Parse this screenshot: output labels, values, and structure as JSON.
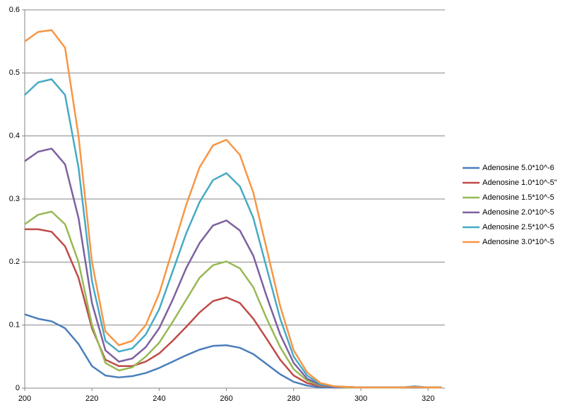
{
  "chart_data": {
    "type": "line",
    "x": [
      200,
      204,
      208,
      212,
      216,
      220,
      224,
      228,
      232,
      236,
      240,
      244,
      248,
      252,
      256,
      260,
      264,
      268,
      272,
      276,
      280,
      284,
      288,
      292,
      296,
      300,
      304,
      308,
      312,
      316,
      320,
      324
    ],
    "series": [
      {
        "name": "Adenosine 5.0*10^-6",
        "color": "#4a7ebb",
        "values": [
          0.117,
          0.11,
          0.106,
          0.095,
          0.07,
          0.035,
          0.02,
          0.017,
          0.019,
          0.024,
          0.032,
          0.042,
          0.052,
          0.061,
          0.067,
          0.068,
          0.064,
          0.054,
          0.038,
          0.022,
          0.01,
          0.004,
          0.001,
          0.001,
          0.001,
          0.001,
          0.001,
          0.001,
          0.001,
          0.002,
          0.001,
          0.001
        ]
      },
      {
        "name": "Adenosine 1.0*10^-5\"",
        "color": "#be4b48",
        "values": [
          0.252,
          0.252,
          0.248,
          0.225,
          0.175,
          0.095,
          0.045,
          0.035,
          0.035,
          0.042,
          0.055,
          0.075,
          0.097,
          0.12,
          0.138,
          0.144,
          0.135,
          0.11,
          0.078,
          0.045,
          0.02,
          0.008,
          0.003,
          0.002,
          0.001,
          0.001,
          0.001,
          0.001,
          0.001,
          0.002,
          0.001,
          0.001
        ]
      },
      {
        "name": "Adenosine 1.5*10^-5",
        "color": "#98b954",
        "values": [
          0.26,
          0.275,
          0.28,
          0.26,
          0.2,
          0.1,
          0.04,
          0.028,
          0.033,
          0.05,
          0.072,
          0.105,
          0.14,
          0.175,
          0.195,
          0.201,
          0.19,
          0.16,
          0.11,
          0.065,
          0.03,
          0.012,
          0.004,
          0.002,
          0.001,
          0.001,
          0.001,
          0.001,
          0.001,
          0.002,
          0.001,
          0.001
        ]
      },
      {
        "name": "Adenosine 2.0*10^-5",
        "color": "#7d60a0",
        "values": [
          0.36,
          0.375,
          0.38,
          0.355,
          0.27,
          0.135,
          0.06,
          0.042,
          0.047,
          0.065,
          0.095,
          0.14,
          0.19,
          0.23,
          0.258,
          0.266,
          0.25,
          0.21,
          0.145,
          0.085,
          0.04,
          0.015,
          0.005,
          0.002,
          0.002,
          0.001,
          0.001,
          0.001,
          0.001,
          0.002,
          0.001,
          0.001
        ]
      },
      {
        "name": "Adenosine 2.5*10^-5",
        "color": "#46aac5",
        "values": [
          0.465,
          0.485,
          0.49,
          0.465,
          0.35,
          0.17,
          0.075,
          0.058,
          0.063,
          0.085,
          0.125,
          0.185,
          0.245,
          0.295,
          0.33,
          0.341,
          0.32,
          0.27,
          0.19,
          0.11,
          0.05,
          0.02,
          0.006,
          0.003,
          0.002,
          0.001,
          0.001,
          0.001,
          0.001,
          0.003,
          0.001,
          0.001
        ]
      },
      {
        "name": "Adenosine 3.0*10^-5",
        "color": "#f79646",
        "values": [
          0.55,
          0.565,
          0.568,
          0.54,
          0.4,
          0.2,
          0.09,
          0.068,
          0.075,
          0.1,
          0.15,
          0.22,
          0.29,
          0.35,
          0.385,
          0.394,
          0.37,
          0.31,
          0.22,
          0.13,
          0.06,
          0.025,
          0.008,
          0.003,
          0.002,
          0.001,
          0.001,
          0.001,
          0.001,
          0.002,
          0.001,
          0.001
        ]
      }
    ],
    "xlim": [
      200,
      325
    ],
    "xticks": [
      200,
      220,
      240,
      260,
      280,
      300,
      320
    ],
    "ylim": [
      0,
      0.6
    ],
    "yticks": [
      0,
      0.1,
      0.2,
      0.3,
      0.4,
      0.5,
      0.6
    ],
    "grid": true,
    "legend": "right"
  }
}
